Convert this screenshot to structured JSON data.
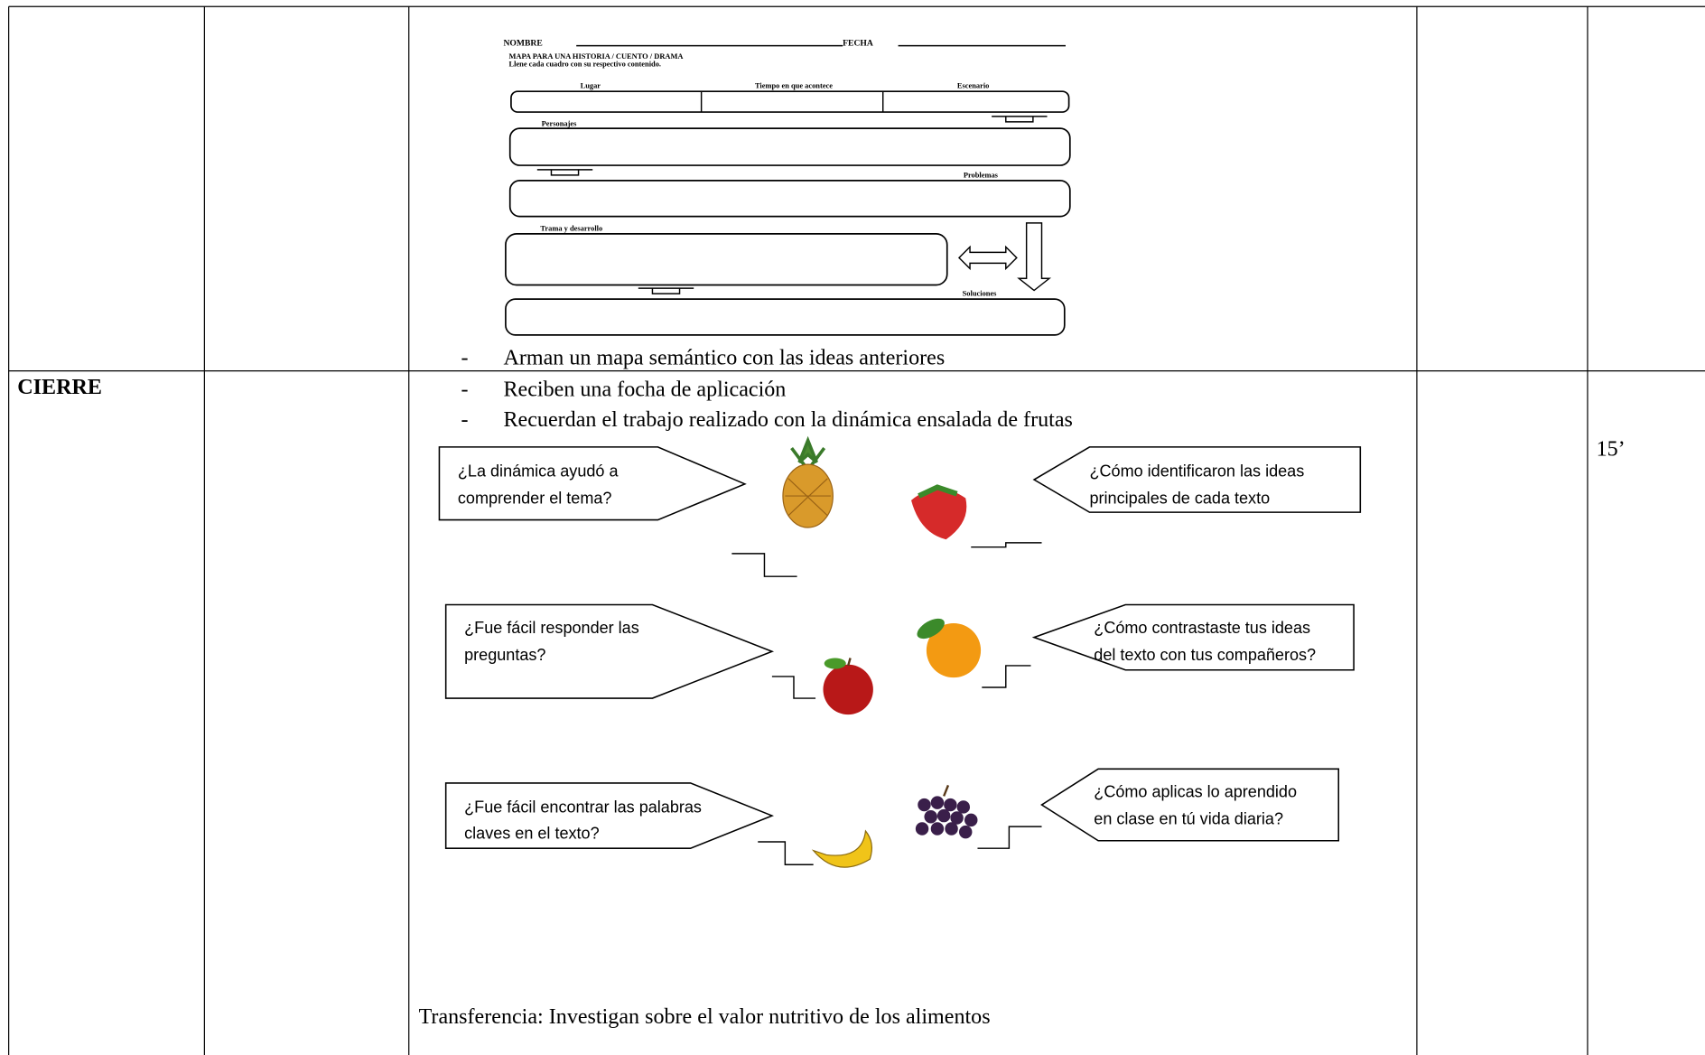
{
  "worksheet": {
    "name_label": "NOMBRE",
    "date_label": "FECHA",
    "title": "MAPA PARA UNA HISTORIA / CUENTO / DRAMA",
    "instruction": "Llene cada cuadro con su respectivo contenido.",
    "fields": [
      "Lugar",
      "Tiempo en que acontece",
      "Escenario",
      "Personajes",
      "Problemas",
      "Trama y desarrollo",
      "Soluciones"
    ]
  },
  "bullet": "-",
  "development_row": {
    "activities": [
      "Arman un mapa semántico con las ideas anteriores"
    ]
  },
  "closing_row": {
    "phase": "CIERRE",
    "activities": [
      "Reciben una focha de aplicación",
      "Recuerdan el trabajo realizado con la dinámica ensalada de frutas"
    ],
    "questions": [
      [
        "¿La dinámica  ayudó a",
        "comprender el tema?"
      ],
      [
        "¿Cómo  identificaron las ideas",
        "principales de cada texto"
      ],
      [
        "¿Fue fácil responder las",
        "preguntas?"
      ],
      [
        "¿Cómo contrastaste tus ideas",
        "del texto con tus compañeros?"
      ],
      [
        "¿Fue fácil encontrar las palabras",
        "claves en el texto?"
      ],
      [
        "¿Cómo aplicas lo aprendido",
        "en clase en tú vida diaria?"
      ]
    ],
    "transfer": "Transferencia: Investigan sobre el valor nutritivo de los alimentos",
    "time": "15’"
  }
}
